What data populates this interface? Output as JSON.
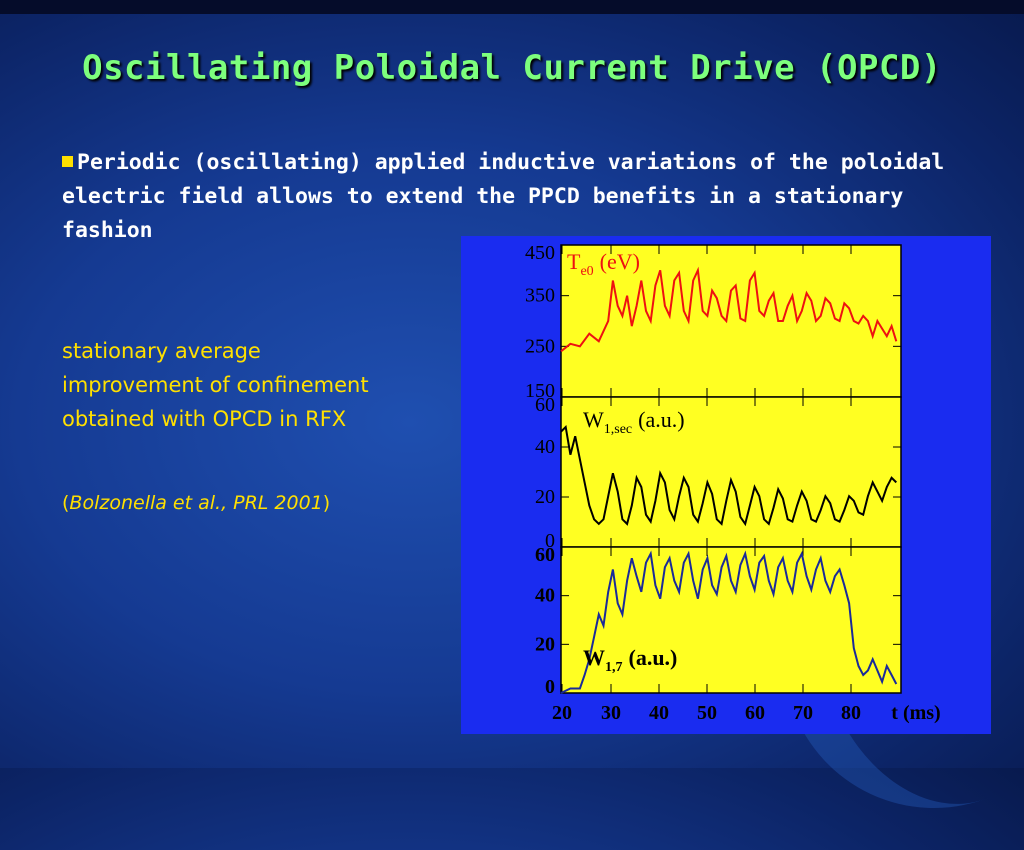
{
  "title": "Oscillating Poloidal Current Drive (OPCD)",
  "bullet": "Periodic (oscillating) applied inductive variations of the poloidal electric field allows to extend the PPCD benefits in a stationary fashion",
  "note": "stationary average improvement of confinement obtained with OPCD in RFX",
  "citation": {
    "open": "(",
    "text": "Bolzonella et al., PRL 2001",
    "close": ")"
  },
  "colors": {
    "title": "#7dff7d",
    "note": "#ffe000",
    "panel_bg": "#ffff22",
    "figure_bg": "#1a2cf0",
    "te_line": "#ee1111",
    "w1_line": "#000000",
    "w17_line": "#1a2a99"
  },
  "chart_data": [
    {
      "type": "line",
      "label_main": "T",
      "label_sub": "e0",
      "label_unit": "(eV)",
      "ylim": [
        150,
        450
      ],
      "yticks": [
        "450",
        "350",
        "250",
        "150"
      ],
      "xlim": [
        20,
        92
      ],
      "series": [
        {
          "color": "#ee1111",
          "x": [
            20,
            22,
            24,
            26,
            28,
            30,
            31,
            32,
            33,
            34,
            35,
            36,
            37,
            38,
            39,
            40,
            41,
            42,
            43,
            44,
            45,
            46,
            47,
            48,
            49,
            50,
            51,
            52,
            53,
            54,
            55,
            56,
            57,
            58,
            59,
            60,
            61,
            62,
            63,
            64,
            65,
            66,
            67,
            68,
            69,
            70,
            71,
            72,
            73,
            74,
            75,
            76,
            77,
            78,
            79,
            80,
            81,
            82,
            83,
            84,
            85,
            86,
            87,
            88,
            89,
            90,
            91
          ],
          "y": [
            240,
            255,
            250,
            275,
            260,
            300,
            380,
            330,
            310,
            350,
            290,
            330,
            380,
            320,
            300,
            370,
            400,
            330,
            310,
            380,
            395,
            320,
            300,
            380,
            400,
            320,
            310,
            360,
            345,
            310,
            300,
            360,
            370,
            305,
            300,
            380,
            395,
            320,
            310,
            340,
            355,
            300,
            300,
            330,
            350,
            300,
            320,
            355,
            340,
            300,
            310,
            345,
            335,
            305,
            300,
            335,
            325,
            300,
            295,
            310,
            300,
            270,
            300,
            285,
            270,
            290,
            260
          ]
        }
      ]
    },
    {
      "type": "line",
      "label_main": "W",
      "label_sub": "1,sec",
      "label_unit": "(a.u.)",
      "ylim": [
        0,
        65
      ],
      "yticks": [
        "60",
        "40",
        "20",
        "0"
      ],
      "xlim": [
        20,
        92
      ],
      "series": [
        {
          "color": "#000000",
          "x": [
            20,
            21,
            22,
            23,
            24,
            25,
            26,
            27,
            28,
            29,
            30,
            31,
            32,
            33,
            34,
            35,
            36,
            37,
            38,
            39,
            40,
            41,
            42,
            43,
            44,
            45,
            46,
            47,
            48,
            49,
            50,
            51,
            52,
            53,
            54,
            55,
            56,
            57,
            58,
            59,
            60,
            61,
            62,
            63,
            64,
            65,
            66,
            67,
            68,
            69,
            70,
            71,
            72,
            73,
            74,
            75,
            76,
            77,
            78,
            79,
            80,
            81,
            82,
            83,
            84,
            85,
            86,
            87,
            88,
            89,
            90,
            91
          ],
          "y": [
            50,
            52,
            40,
            48,
            38,
            28,
            18,
            12,
            10,
            12,
            22,
            32,
            24,
            12,
            10,
            18,
            30,
            26,
            14,
            11,
            20,
            32,
            28,
            16,
            12,
            22,
            30,
            26,
            14,
            11,
            19,
            28,
            23,
            12,
            10,
            20,
            29,
            24,
            13,
            10,
            18,
            26,
            22,
            12,
            10,
            17,
            25,
            21,
            12,
            11,
            18,
            24,
            20,
            12,
            11,
            16,
            22,
            19,
            12,
            11,
            16,
            22,
            20,
            15,
            14,
            22,
            28,
            24,
            20,
            26,
            30,
            28
          ]
        }
      ]
    },
    {
      "type": "line",
      "label_main": "W",
      "label_sub": "1,7",
      "label_unit": "(a.u.)",
      "ylim": [
        0,
        65
      ],
      "yticks": [
        "60",
        "40",
        "20",
        "0"
      ],
      "xlim": [
        20,
        92
      ],
      "xticks": [
        "20",
        "30",
        "40",
        "50",
        "60",
        "70",
        "80"
      ],
      "xlabel": "t (ms)",
      "series": [
        {
          "color": "#1a2a99",
          "x": [
            20,
            22,
            24,
            25,
            26,
            27,
            28,
            29,
            30,
            31,
            32,
            33,
            34,
            35,
            36,
            37,
            38,
            39,
            40,
            41,
            42,
            43,
            44,
            45,
            46,
            47,
            48,
            49,
            50,
            51,
            52,
            53,
            54,
            55,
            56,
            57,
            58,
            59,
            60,
            61,
            62,
            63,
            64,
            65,
            66,
            67,
            68,
            69,
            70,
            71,
            72,
            73,
            74,
            75,
            76,
            77,
            78,
            79,
            80,
            81,
            82,
            83,
            84,
            85,
            86,
            87,
            88,
            89,
            90,
            91
          ],
          "y": [
            0,
            2,
            2,
            8,
            15,
            25,
            35,
            30,
            45,
            55,
            40,
            35,
            50,
            60,
            52,
            45,
            58,
            62,
            48,
            42,
            56,
            60,
            50,
            45,
            58,
            62,
            50,
            42,
            55,
            60,
            48,
            44,
            56,
            61,
            50,
            45,
            57,
            62,
            52,
            46,
            58,
            61,
            50,
            44,
            56,
            60,
            50,
            45,
            58,
            62,
            52,
            46,
            55,
            60,
            50,
            45,
            52,
            55,
            48,
            40,
            20,
            12,
            8,
            10,
            15,
            10,
            5,
            12,
            8,
            4
          ]
        }
      ]
    }
  ]
}
